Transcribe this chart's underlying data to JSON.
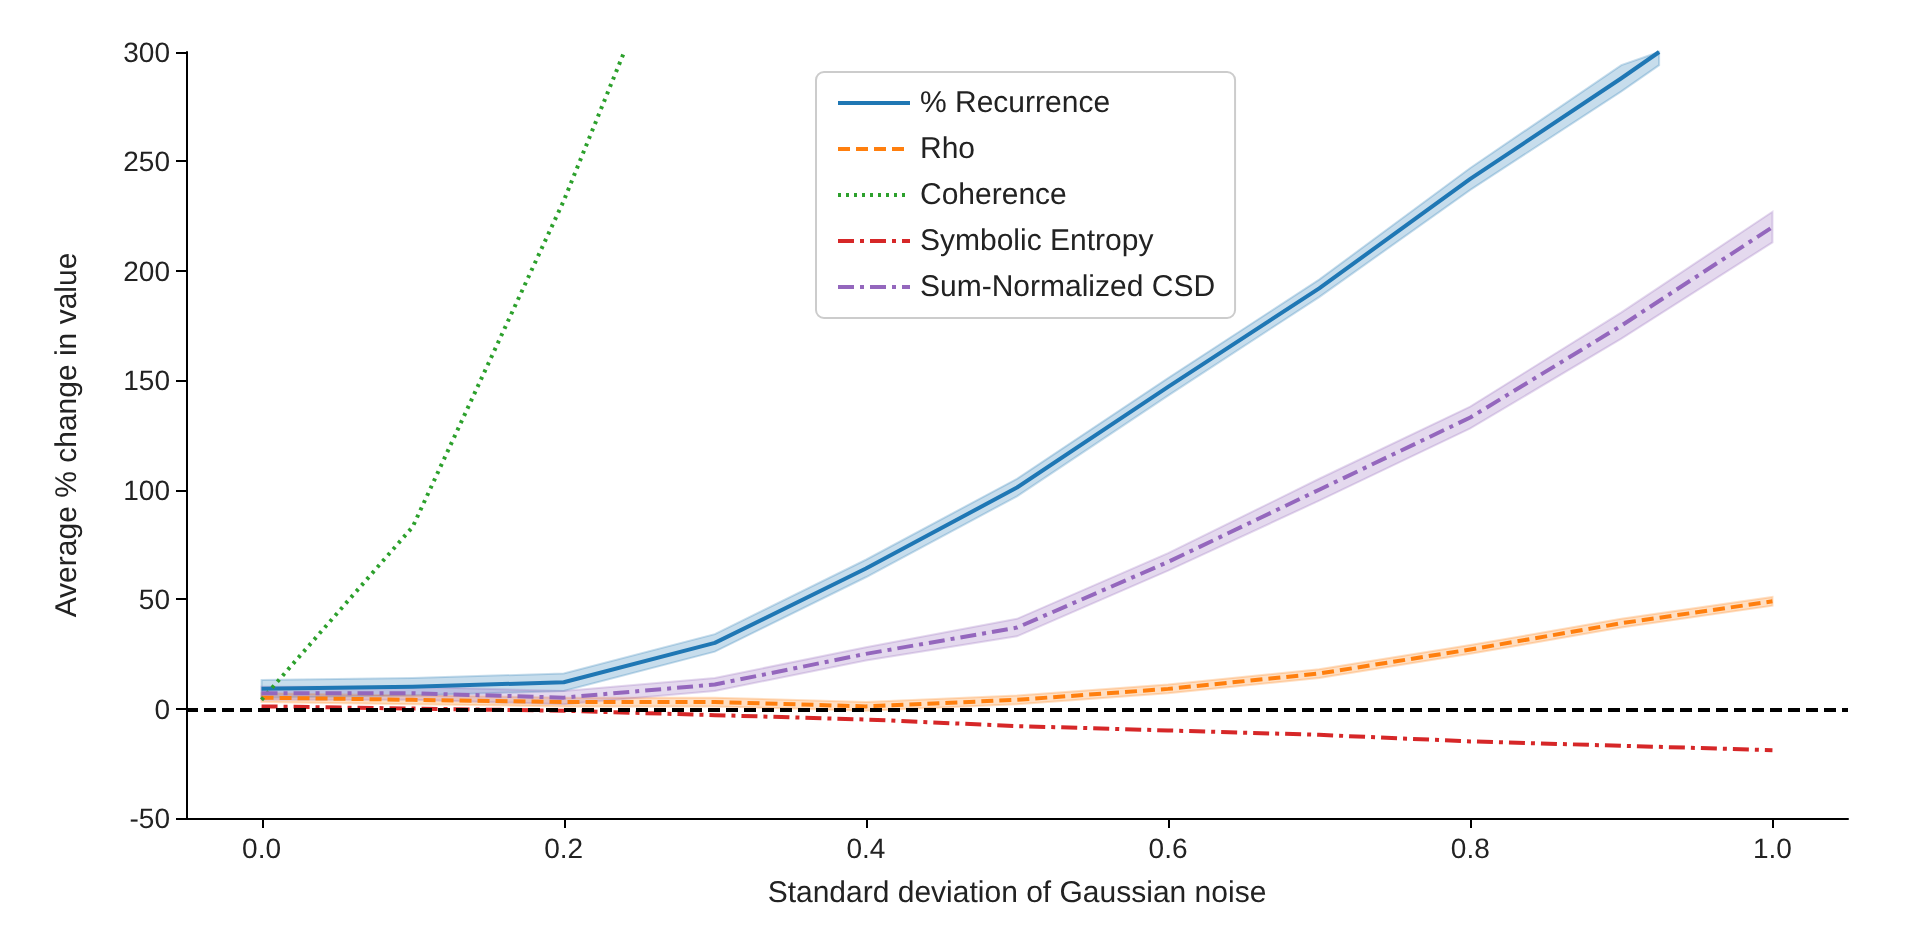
{
  "chart_data": {
    "type": "line",
    "xlabel": "Standard deviation of Gaussian noise",
    "ylabel": "Average % change in value",
    "xlim": [
      -0.05,
      1.05
    ],
    "xticks": [
      {
        "value": 0,
        "label": "0.0"
      },
      {
        "value": 0.2,
        "label": "0.2"
      },
      {
        "value": 0.4,
        "label": "0.4"
      },
      {
        "value": 0.6,
        "label": "0.6"
      },
      {
        "value": 0.8,
        "label": "0.8"
      },
      {
        "value": 1,
        "label": "1.0"
      }
    ],
    "ylim": [
      -50,
      300
    ],
    "yticks": [
      -50,
      0,
      50,
      100,
      150,
      200,
      250,
      300
    ],
    "grid": false,
    "legend": "top",
    "marker": "none",
    "ref_lines": [
      {
        "axis": "y",
        "value": 0,
        "color": "#000000",
        "line_style": "dashed"
      }
    ],
    "series": [
      {
        "name": "% Recurrence",
        "color": "#1f77b4",
        "line_style": "solid",
        "x": [
          0,
          0.1,
          0.2,
          0.3,
          0.4,
          0.5,
          0.6,
          0.7,
          0.8,
          0.9,
          0.925
        ],
        "values": [
          9,
          10,
          12,
          30,
          64,
          101,
          147,
          192,
          242,
          288,
          300
        ],
        "lower": [
          5,
          6,
          8,
          26,
          60,
          97,
          143,
          188,
          237,
          282,
          294
        ],
        "upper": [
          13,
          14,
          16,
          34,
          68,
          105,
          151,
          196,
          247,
          294,
          300
        ]
      },
      {
        "name": "Rho",
        "color": "#ff7f0e",
        "line_style": "dashed",
        "x": [
          0,
          0.1,
          0.2,
          0.3,
          0.4,
          0.5,
          0.6,
          0.7,
          0.8,
          0.9,
          1.0
        ],
        "values": [
          5,
          4,
          3,
          3,
          1,
          4,
          9,
          16,
          27,
          39,
          49
        ],
        "lower": [
          3,
          2,
          1,
          1,
          -1,
          2,
          7,
          14,
          25,
          37,
          47
        ],
        "upper": [
          7,
          6,
          5,
          5,
          3,
          6,
          11,
          18,
          29,
          41,
          51
        ]
      },
      {
        "name": "Coherence",
        "color": "#2ca02c",
        "line_style": "dotted",
        "x": [
          0,
          0.1,
          0.2,
          0.24
        ],
        "values": [
          4,
          83,
          232,
          300
        ]
      },
      {
        "name": "Symbolic Entropy",
        "color": "#d62728",
        "line_style": "dashdot",
        "x": [
          0,
          0.1,
          0.2,
          0.3,
          0.4,
          0.5,
          0.6,
          0.7,
          0.8,
          0.9,
          1.0
        ],
        "values": [
          1,
          0,
          -1,
          -3,
          -5,
          -8,
          -10,
          -12,
          -15,
          -17,
          -19
        ]
      },
      {
        "name": "Sum-Normalized CSD",
        "color": "#9467bd",
        "line_style": "dashdot",
        "x": [
          0,
          0.1,
          0.2,
          0.3,
          0.4,
          0.5,
          0.6,
          0.7,
          0.8,
          0.9,
          1.0
        ],
        "values": [
          7,
          7,
          5,
          11,
          25,
          37,
          67,
          100,
          133,
          175,
          220
        ],
        "lower": [
          4,
          4,
          2,
          8,
          22,
          33,
          63,
          95,
          128,
          169,
          213
        ],
        "upper": [
          10,
          10,
          8,
          14,
          28,
          41,
          71,
          105,
          138,
          181,
          227
        ]
      }
    ]
  }
}
